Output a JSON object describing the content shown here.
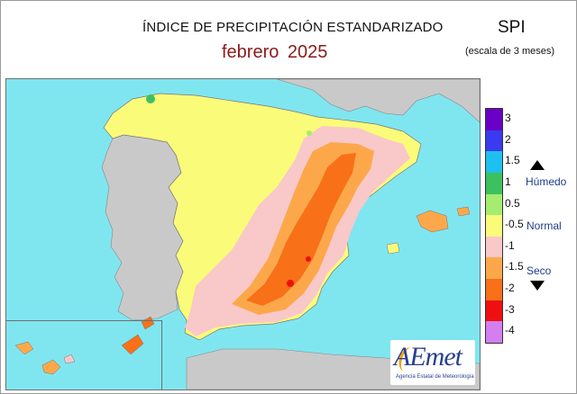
{
  "header": {
    "title": "ÍNDICE DE PRECIPITACIÓN ESTANDARIZADO",
    "period": "febrero  2025",
    "index_code": "SPI",
    "scale_note": "(escala de 3 meses)"
  },
  "legend": {
    "classes": [
      {
        "label": "3",
        "color": "#6a00c8"
      },
      {
        "label": "2",
        "color": "#3a3af0"
      },
      {
        "label": "1.5",
        "color": "#1ec0f0"
      },
      {
        "label": "1",
        "color": "#3cc060"
      },
      {
        "label": "0.5",
        "color": "#a6ec70"
      },
      {
        "label": "-0.5",
        "color": "#fbfb7a"
      },
      {
        "label": "-1",
        "color": "#f9c8c8"
      },
      {
        "label": "-1.5",
        "color": "#fca84a"
      },
      {
        "label": "-2",
        "color": "#f87018"
      },
      {
        "label": "-3",
        "color": "#ee1010"
      },
      {
        "label": "-4",
        "color": "#d47ef0"
      }
    ],
    "wet_label": "Húmedo",
    "normal_label": "Normal",
    "dry_label": "Seco"
  },
  "map": {
    "sea_color": "#7fe6f0",
    "foreign_land_color": "#c9c9c9",
    "peninsula_base_color": "#fbfb7a"
  },
  "logo": {
    "name": "AEmet",
    "subtitle": "Agencia Estatal de Meteorología"
  }
}
